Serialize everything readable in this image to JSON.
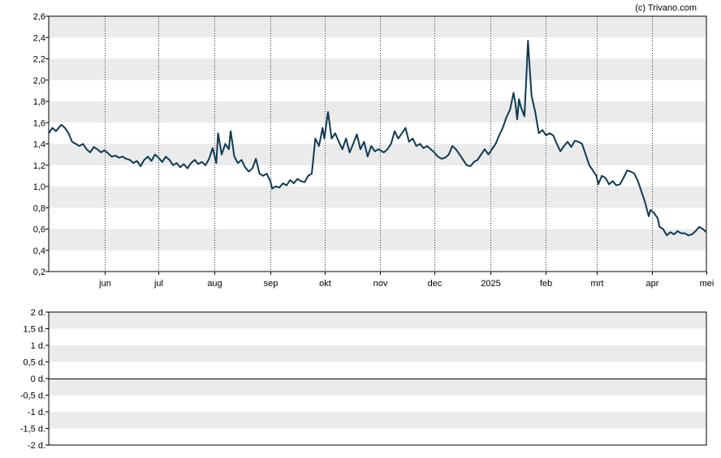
{
  "watermark": "(c) Trivano.com",
  "chart_data": [
    {
      "type": "line",
      "title": "",
      "ylim": [
        0.2,
        2.6
      ],
      "y_ticks": [
        0.2,
        0.4,
        0.6,
        0.8,
        1.0,
        1.2,
        1.4,
        1.6,
        1.8,
        2.0,
        2.2,
        2.4,
        2.6
      ],
      "y_tick_labels": [
        "0,2",
        "0,4",
        "0,6",
        "0,8",
        "1,0",
        "1,2",
        "1,4",
        "1,6",
        "1,8",
        "2,0",
        "2,2",
        "2,4",
        "2,6"
      ],
      "x_range": [
        "2024-05-01",
        "2025-05-01"
      ],
      "x_ticks": [
        {
          "date": "2024-06-01",
          "label": "jun"
        },
        {
          "date": "2024-07-01",
          "label": "jul"
        },
        {
          "date": "2024-08-01",
          "label": "aug"
        },
        {
          "date": "2024-09-01",
          "label": "sep"
        },
        {
          "date": "2024-10-01",
          "label": "okt"
        },
        {
          "date": "2024-11-01",
          "label": "nov"
        },
        {
          "date": "2024-12-01",
          "label": "dec"
        },
        {
          "date": "2025-01-01",
          "label": "2025"
        },
        {
          "date": "2025-02-01",
          "label": "feb"
        },
        {
          "date": "2025-03-01",
          "label": "mrt"
        },
        {
          "date": "2025-04-01",
          "label": "apr"
        },
        {
          "date": "2025-05-01",
          "label": "mei"
        }
      ],
      "grid": "banded horizontal, dotted vertical",
      "series": [
        {
          "color": "#0e3a52",
          "points": [
            [
              "2024-05-01",
              1.5
            ],
            [
              "2024-05-03",
              1.55
            ],
            [
              "2024-05-05",
              1.52
            ],
            [
              "2024-05-08",
              1.58
            ],
            [
              "2024-05-10",
              1.55
            ],
            [
              "2024-05-12",
              1.5
            ],
            [
              "2024-05-14",
              1.42
            ],
            [
              "2024-05-16",
              1.4
            ],
            [
              "2024-05-18",
              1.38
            ],
            [
              "2024-05-20",
              1.4
            ],
            [
              "2024-05-22",
              1.35
            ],
            [
              "2024-05-24",
              1.32
            ],
            [
              "2024-05-26",
              1.37
            ],
            [
              "2024-05-28",
              1.35
            ],
            [
              "2024-05-30",
              1.32
            ],
            [
              "2024-06-01",
              1.34
            ],
            [
              "2024-06-03",
              1.31
            ],
            [
              "2024-06-05",
              1.28
            ],
            [
              "2024-06-07",
              1.29
            ],
            [
              "2024-06-09",
              1.27
            ],
            [
              "2024-06-11",
              1.28
            ],
            [
              "2024-06-13",
              1.26
            ],
            [
              "2024-06-15",
              1.25
            ],
            [
              "2024-06-17",
              1.22
            ],
            [
              "2024-06-19",
              1.24
            ],
            [
              "2024-06-21",
              1.19
            ],
            [
              "2024-06-23",
              1.25
            ],
            [
              "2024-06-25",
              1.28
            ],
            [
              "2024-06-27",
              1.24
            ],
            [
              "2024-06-29",
              1.3
            ],
            [
              "2024-07-01",
              1.27
            ],
            [
              "2024-07-03",
              1.23
            ],
            [
              "2024-07-05",
              1.28
            ],
            [
              "2024-07-07",
              1.25
            ],
            [
              "2024-07-09",
              1.2
            ],
            [
              "2024-07-11",
              1.22
            ],
            [
              "2024-07-13",
              1.18
            ],
            [
              "2024-07-15",
              1.21
            ],
            [
              "2024-07-17",
              1.17
            ],
            [
              "2024-07-19",
              1.22
            ],
            [
              "2024-07-21",
              1.25
            ],
            [
              "2024-07-23",
              1.21
            ],
            [
              "2024-07-25",
              1.23
            ],
            [
              "2024-07-27",
              1.2
            ],
            [
              "2024-07-29",
              1.26
            ],
            [
              "2024-07-31",
              1.36
            ],
            [
              "2024-08-02",
              1.22
            ],
            [
              "2024-08-03",
              1.5
            ],
            [
              "2024-08-05",
              1.3
            ],
            [
              "2024-08-07",
              1.4
            ],
            [
              "2024-08-09",
              1.35
            ],
            [
              "2024-08-10",
              1.52
            ],
            [
              "2024-08-12",
              1.28
            ],
            [
              "2024-08-14",
              1.22
            ],
            [
              "2024-08-16",
              1.25
            ],
            [
              "2024-08-18",
              1.18
            ],
            [
              "2024-08-20",
              1.14
            ],
            [
              "2024-08-22",
              1.17
            ],
            [
              "2024-08-24",
              1.26
            ],
            [
              "2024-08-26",
              1.12
            ],
            [
              "2024-08-28",
              1.1
            ],
            [
              "2024-08-30",
              1.12
            ],
            [
              "2024-09-01",
              1.05
            ],
            [
              "2024-09-02",
              0.98
            ],
            [
              "2024-09-04",
              1.0
            ],
            [
              "2024-09-06",
              0.99
            ],
            [
              "2024-09-08",
              1.03
            ],
            [
              "2024-09-10",
              1.01
            ],
            [
              "2024-09-12",
              1.06
            ],
            [
              "2024-09-14",
              1.03
            ],
            [
              "2024-09-16",
              1.07
            ],
            [
              "2024-09-18",
              1.05
            ],
            [
              "2024-09-20",
              1.04
            ],
            [
              "2024-09-22",
              1.1
            ],
            [
              "2024-09-24",
              1.12
            ],
            [
              "2024-09-26",
              1.45
            ],
            [
              "2024-09-28",
              1.38
            ],
            [
              "2024-09-30",
              1.55
            ],
            [
              "2024-10-01",
              1.45
            ],
            [
              "2024-10-03",
              1.7
            ],
            [
              "2024-10-05",
              1.45
            ],
            [
              "2024-10-07",
              1.5
            ],
            [
              "2024-10-09",
              1.42
            ],
            [
              "2024-10-11",
              1.35
            ],
            [
              "2024-10-13",
              1.45
            ],
            [
              "2024-10-15",
              1.32
            ],
            [
              "2024-10-17",
              1.4
            ],
            [
              "2024-10-19",
              1.49
            ],
            [
              "2024-10-21",
              1.35
            ],
            [
              "2024-10-23",
              1.42
            ],
            [
              "2024-10-25",
              1.28
            ],
            [
              "2024-10-27",
              1.38
            ],
            [
              "2024-10-29",
              1.33
            ],
            [
              "2024-10-31",
              1.35
            ],
            [
              "2024-11-03",
              1.32
            ],
            [
              "2024-11-05",
              1.35
            ],
            [
              "2024-11-07",
              1.4
            ],
            [
              "2024-11-09",
              1.52
            ],
            [
              "2024-11-11",
              1.45
            ],
            [
              "2024-11-13",
              1.5
            ],
            [
              "2024-11-15",
              1.55
            ],
            [
              "2024-11-17",
              1.42
            ],
            [
              "2024-11-19",
              1.45
            ],
            [
              "2024-11-21",
              1.38
            ],
            [
              "2024-11-23",
              1.4
            ],
            [
              "2024-11-25",
              1.36
            ],
            [
              "2024-11-27",
              1.38
            ],
            [
              "2024-11-29",
              1.35
            ],
            [
              "2024-12-01",
              1.32
            ],
            [
              "2024-12-03",
              1.28
            ],
            [
              "2024-12-05",
              1.26
            ],
            [
              "2024-12-07",
              1.27
            ],
            [
              "2024-12-09",
              1.3
            ],
            [
              "2024-12-11",
              1.38
            ],
            [
              "2024-12-13",
              1.35
            ],
            [
              "2024-12-15",
              1.3
            ],
            [
              "2024-12-17",
              1.25
            ],
            [
              "2024-12-19",
              1.2
            ],
            [
              "2024-12-21",
              1.19
            ],
            [
              "2024-12-23",
              1.23
            ],
            [
              "2024-12-25",
              1.25
            ],
            [
              "2024-12-27",
              1.3
            ],
            [
              "2024-12-29",
              1.35
            ],
            [
              "2024-12-31",
              1.3
            ],
            [
              "2025-01-02",
              1.35
            ],
            [
              "2025-01-04",
              1.4
            ],
            [
              "2025-01-06",
              1.48
            ],
            [
              "2025-01-08",
              1.55
            ],
            [
              "2025-01-10",
              1.65
            ],
            [
              "2025-01-12",
              1.72
            ],
            [
              "2025-01-14",
              1.88
            ],
            [
              "2025-01-15",
              1.78
            ],
            [
              "2025-01-16",
              1.63
            ],
            [
              "2025-01-17",
              1.82
            ],
            [
              "2025-01-18",
              1.75
            ],
            [
              "2025-01-20",
              1.66
            ],
            [
              "2025-01-21",
              2.0
            ],
            [
              "2025-01-22",
              2.37
            ],
            [
              "2025-01-23",
              2.1
            ],
            [
              "2025-01-24",
              1.85
            ],
            [
              "2025-01-26",
              1.7
            ],
            [
              "2025-01-28",
              1.5
            ],
            [
              "2025-01-30",
              1.53
            ],
            [
              "2025-02-01",
              1.48
            ],
            [
              "2025-02-03",
              1.5
            ],
            [
              "2025-02-05",
              1.48
            ],
            [
              "2025-02-07",
              1.4
            ],
            [
              "2025-02-09",
              1.33
            ],
            [
              "2025-02-11",
              1.38
            ],
            [
              "2025-02-13",
              1.42
            ],
            [
              "2025-02-15",
              1.37
            ],
            [
              "2025-02-17",
              1.43
            ],
            [
              "2025-02-19",
              1.42
            ],
            [
              "2025-02-21",
              1.4
            ],
            [
              "2025-02-23",
              1.3
            ],
            [
              "2025-02-25",
              1.2
            ],
            [
              "2025-02-27",
              1.15
            ],
            [
              "2025-03-01",
              1.1
            ],
            [
              "2025-03-02",
              1.02
            ],
            [
              "2025-03-04",
              1.1
            ],
            [
              "2025-03-06",
              1.08
            ],
            [
              "2025-03-08",
              1.02
            ],
            [
              "2025-03-10",
              1.05
            ],
            [
              "2025-03-12",
              1.01
            ],
            [
              "2025-03-14",
              1.02
            ],
            [
              "2025-03-16",
              1.08
            ],
            [
              "2025-03-18",
              1.15
            ],
            [
              "2025-03-20",
              1.14
            ],
            [
              "2025-03-22",
              1.12
            ],
            [
              "2025-03-24",
              1.05
            ],
            [
              "2025-03-26",
              0.95
            ],
            [
              "2025-03-28",
              0.85
            ],
            [
              "2025-03-30",
              0.72
            ],
            [
              "2025-03-31",
              0.78
            ],
            [
              "2025-04-02",
              0.75
            ],
            [
              "2025-04-04",
              0.7
            ],
            [
              "2025-04-05",
              0.62
            ],
            [
              "2025-04-07",
              0.6
            ],
            [
              "2025-04-09",
              0.54
            ],
            [
              "2025-04-11",
              0.57
            ],
            [
              "2025-04-13",
              0.55
            ],
            [
              "2025-04-15",
              0.58
            ],
            [
              "2025-04-17",
              0.56
            ],
            [
              "2025-04-19",
              0.56
            ],
            [
              "2025-04-21",
              0.54
            ],
            [
              "2025-04-23",
              0.55
            ],
            [
              "2025-04-25",
              0.58
            ],
            [
              "2025-04-27",
              0.62
            ],
            [
              "2025-04-29",
              0.6
            ],
            [
              "2025-05-01",
              0.57
            ]
          ]
        }
      ]
    },
    {
      "type": "line",
      "title": "",
      "ylim": [
        -2,
        2
      ],
      "y_ticks": [
        -2,
        -1.5,
        -1,
        -0.5,
        0,
        0.5,
        1,
        1.5,
        2
      ],
      "y_tick_labels": [
        "-2 d.",
        "-1,5 d.",
        "-1 d.",
        "-0,5 d.",
        "0 d.",
        "0,5 d.",
        "1 d.",
        "1,5 d.",
        "2 d."
      ],
      "grid": "banded horizontal",
      "zero_line": 0,
      "series": []
    }
  ]
}
